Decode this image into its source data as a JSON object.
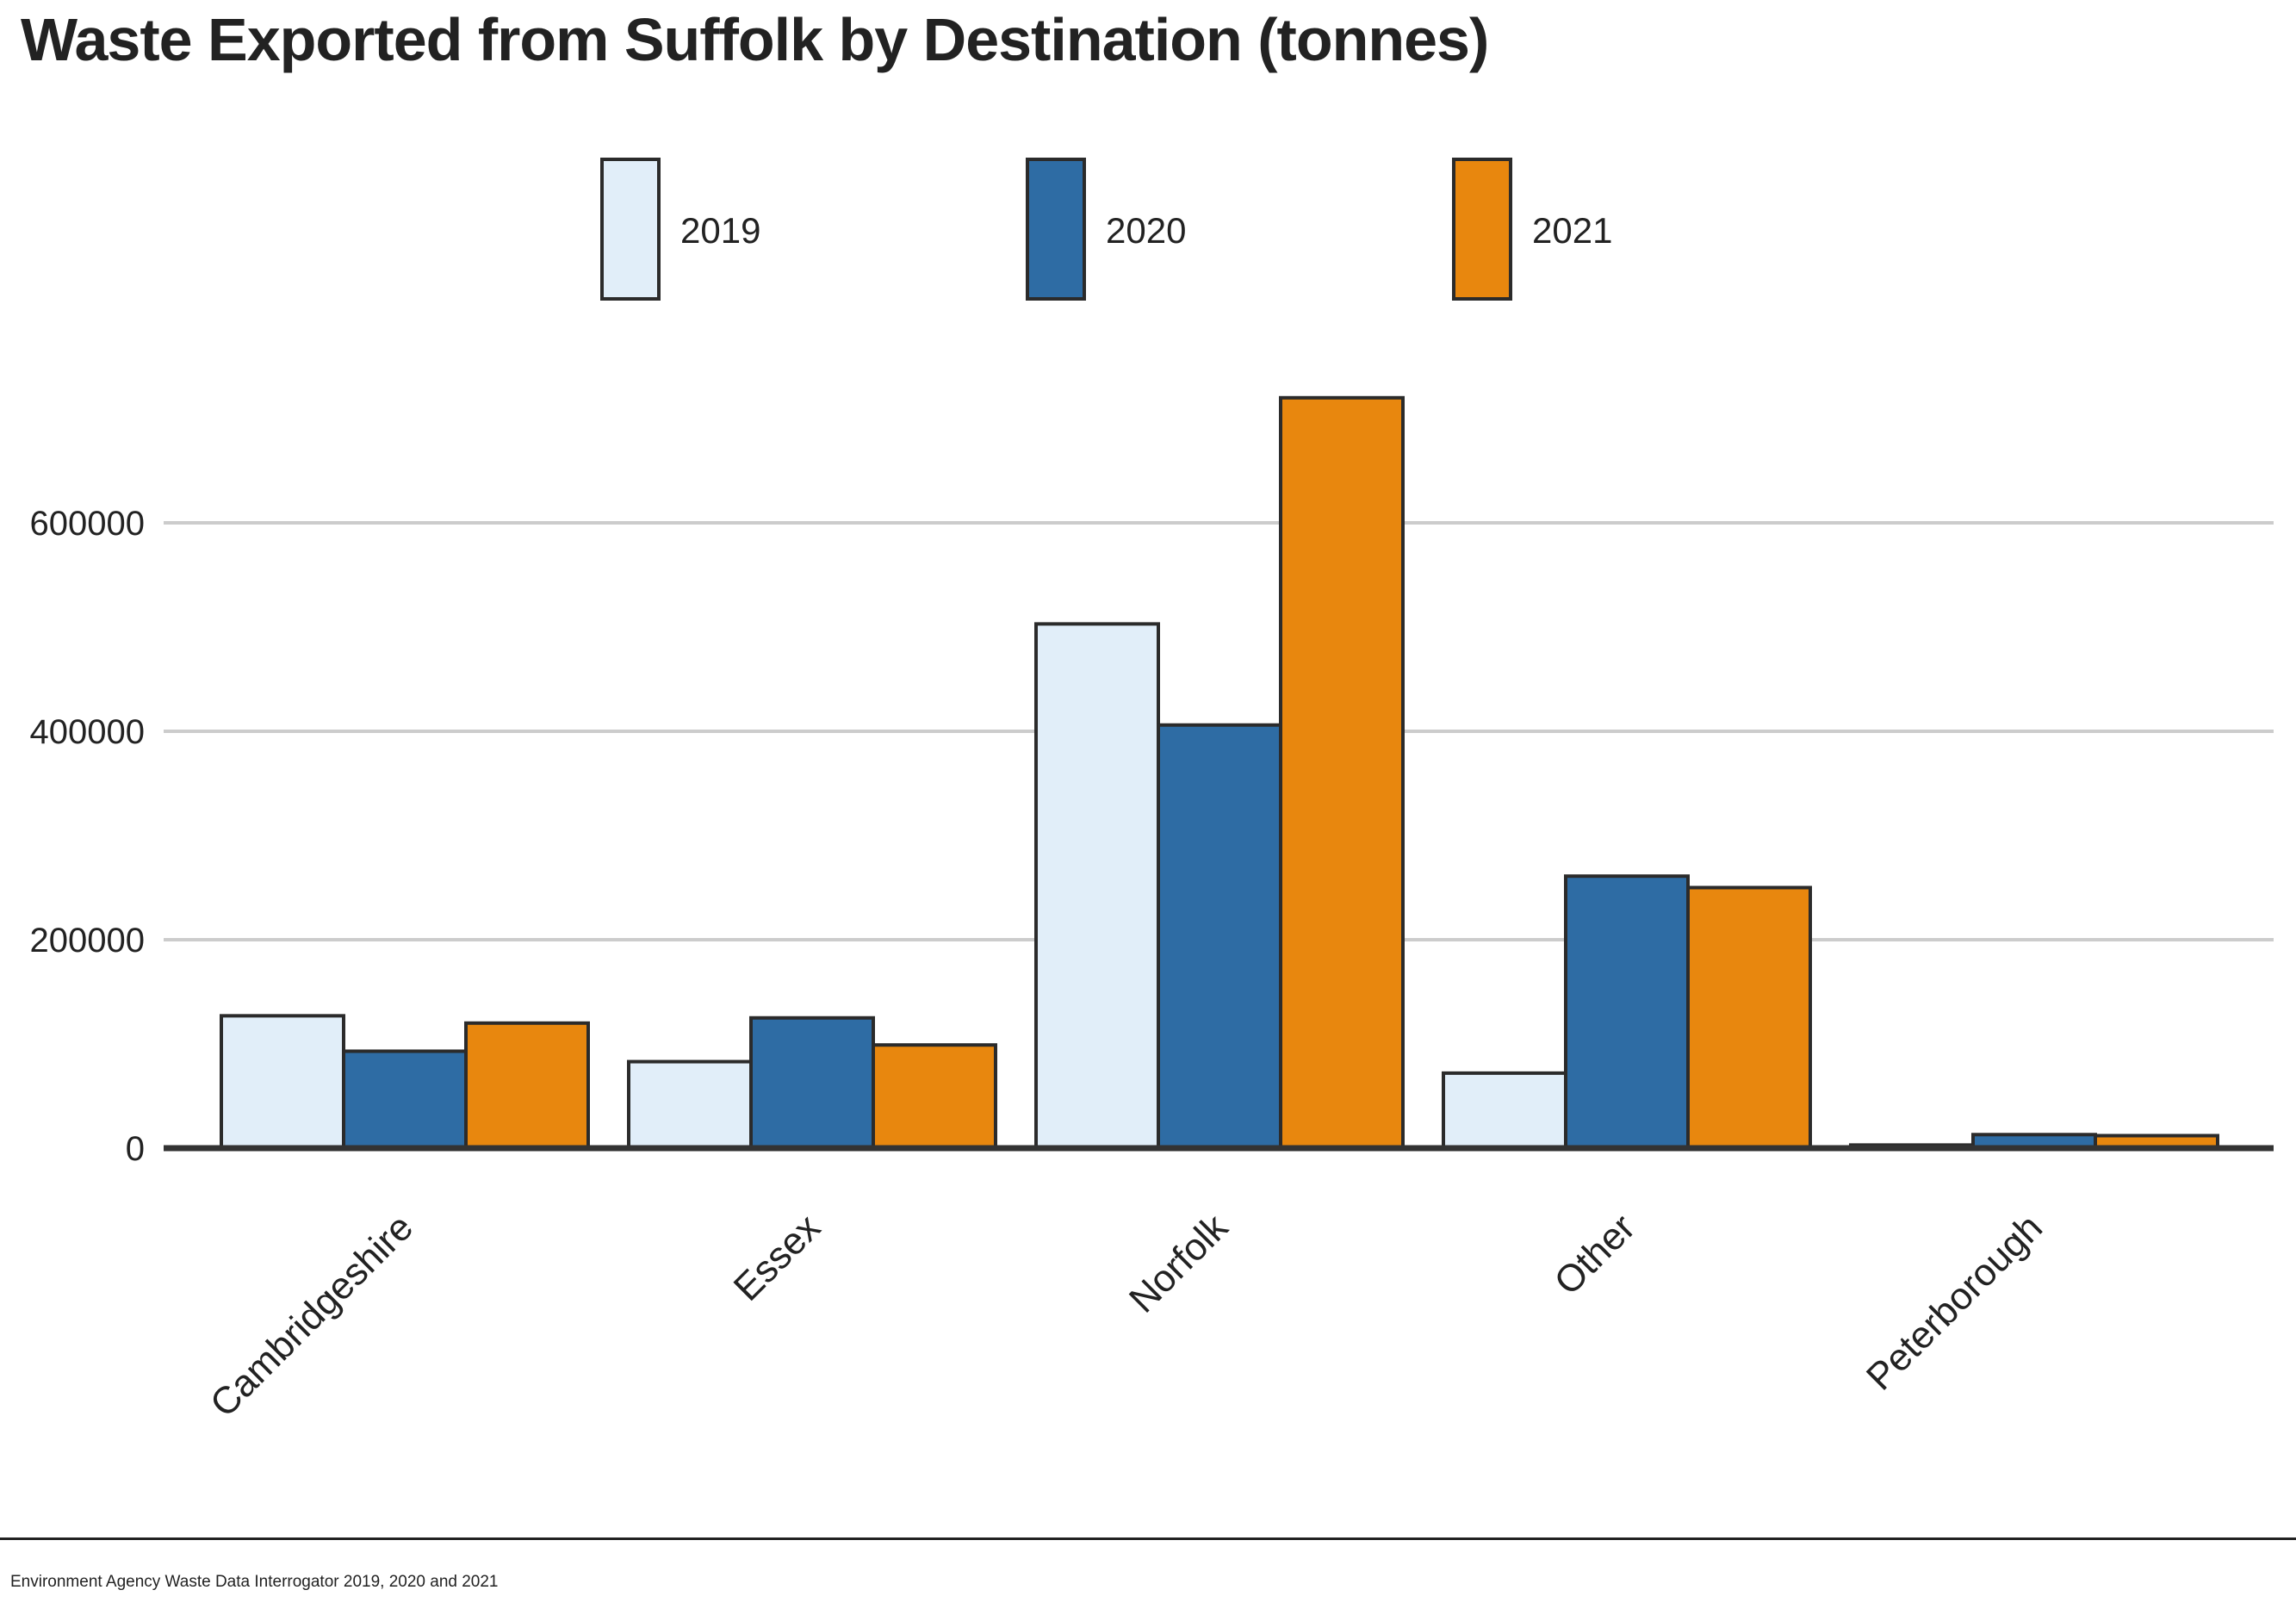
{
  "page": {
    "source": "Environment Agency Waste Data Interrogator 2019, 2020 and 2021"
  },
  "chart_data": {
    "type": "bar",
    "title": "Waste Exported from Suffolk by Destination (tonnes)",
    "xlabel": "",
    "ylabel": "",
    "categories": [
      "Cambridgeshire",
      "Essex",
      "Norfolk",
      "Other",
      "Peterborough"
    ],
    "series": [
      {
        "name": "2019",
        "color": "#e1eef9",
        "values": [
          127000,
          83000,
          503000,
          72000,
          3000
        ]
      },
      {
        "name": "2020",
        "color": "#2e6ca4",
        "values": [
          93000,
          125000,
          406000,
          261000,
          13000
        ]
      },
      {
        "name": "2021",
        "color": "#e8870e",
        "values": [
          120000,
          99000,
          720000,
          250000,
          12000
        ]
      }
    ],
    "yticks": [
      0,
      200000,
      400000,
      600000
    ],
    "ytick_labels": [
      "0",
      "200000",
      "400000",
      "600000"
    ],
    "ylim": [
      0,
      800000
    ],
    "grid": true,
    "legend_position": "top-center"
  }
}
